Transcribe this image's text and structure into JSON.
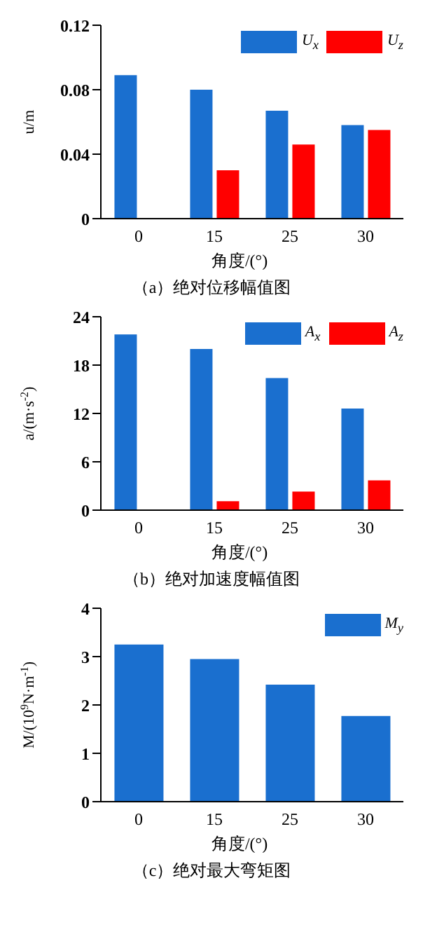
{
  "chart_data": [
    {
      "type": "bar",
      "title": "（a）绝对位移幅值图",
      "xlabel": "角度/(°)",
      "ylabel": "u/m",
      "categories": [
        "0",
        "15",
        "25",
        "30"
      ],
      "series": [
        {
          "name": "U$_{x}$",
          "color": "#1a6fcf",
          "values": [
            0.089,
            0.08,
            0.067,
            0.058
          ]
        },
        {
          "name": "U$_{z}$",
          "color": "#ff0000",
          "values": [
            null,
            0.03,
            0.046,
            0.055
          ]
        }
      ],
      "ylim": [
        0,
        0.12
      ],
      "yticks": [
        0,
        0.04,
        0.08,
        0.12
      ],
      "grid": false,
      "legend": "top right"
    },
    {
      "type": "bar",
      "title": "（b）绝对加速度幅值图",
      "xlabel": "角度/(°)",
      "ylabel": "a/(m·s$^{-2}$)",
      "categories": [
        "0",
        "15",
        "25",
        "30"
      ],
      "series": [
        {
          "name": "A$_{x}$",
          "color": "#1a6fcf",
          "values": [
            21.8,
            20.0,
            16.4,
            12.6
          ]
        },
        {
          "name": "A$_{z}$",
          "color": "#ff0000",
          "values": [
            null,
            1.1,
            2.3,
            3.7
          ]
        }
      ],
      "ylim": [
        0,
        24
      ],
      "yticks": [
        0,
        6,
        12,
        18,
        24
      ],
      "grid": false,
      "legend": "top right"
    },
    {
      "type": "bar",
      "title": "（c）绝对最大弯矩图",
      "xlabel": "角度/(°)",
      "ylabel": "M/(10$^{9}$N·m$^{-1}$)",
      "categories": [
        "0",
        "15",
        "25",
        "30"
      ],
      "series": [
        {
          "name": "M$_{y}$",
          "color": "#1a6fcf",
          "values": [
            3.25,
            2.95,
            2.42,
            1.77
          ]
        }
      ],
      "ylim": [
        0,
        4
      ],
      "yticks": [
        0,
        1,
        2,
        3,
        4
      ],
      "grid": false,
      "legend": "top right"
    }
  ]
}
